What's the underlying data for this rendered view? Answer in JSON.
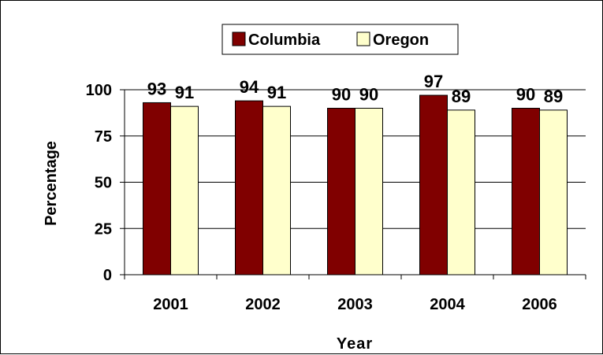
{
  "chart_data": {
    "type": "bar",
    "categories": [
      "2001",
      "2002",
      "2003",
      "2004",
      "2006"
    ],
    "series": [
      {
        "name": "Columbia",
        "values": [
          93,
          94,
          90,
          97,
          90
        ],
        "color": "#800000"
      },
      {
        "name": "Oregon",
        "values": [
          91,
          91,
          90,
          89,
          89
        ],
        "color": "#FFFFCC"
      }
    ],
    "data_labels": {
      "Columbia": [
        "93",
        "94",
        "90",
        "97",
        "90"
      ],
      "Oregon": [
        "91",
        "91",
        "90",
        "89",
        "89"
      ]
    },
    "xlabel": "Year",
    "ylabel": "Percentage",
    "ylim": [
      0,
      100
    ],
    "yticks": [
      "0",
      "25",
      "50",
      "75",
      "100"
    ],
    "grid": true,
    "legend_position": "top-center"
  }
}
